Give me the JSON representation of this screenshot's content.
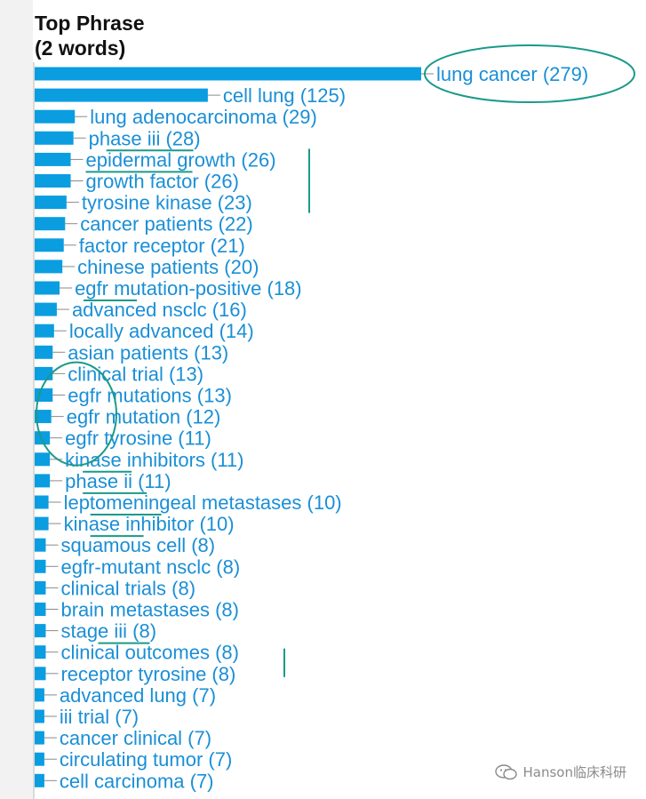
{
  "chart_data": {
    "type": "bar",
    "orientation": "horizontal",
    "title_line1": "Top Phrase",
    "title_line2": "(2 words)",
    "categories": [
      "lung cancer",
      "cell lung",
      "lung adenocarcinoma",
      "phase iii",
      "epidermal growth",
      "growth factor",
      "tyrosine kinase",
      "cancer patients",
      "factor receptor",
      "chinese patients",
      "egfr mutation-positive",
      "advanced nsclc",
      "locally advanced",
      "asian patients",
      "clinical trial",
      "egfr mutations",
      "egfr mutation",
      "egfr tyrosine",
      "kinase inhibitors",
      "phase ii",
      "leptomeningeal metastases",
      "kinase inhibitor",
      "squamous cell",
      "egfr-mutant nsclc",
      "clinical trials",
      "brain metastases",
      "stage iii",
      "clinical outcomes",
      "receptor tyrosine",
      "advanced lung",
      "iii trial",
      "cancer clinical",
      "circulating tumor",
      "cell carcinoma"
    ],
    "values": [
      279,
      125,
      29,
      28,
      26,
      26,
      23,
      22,
      21,
      20,
      18,
      16,
      14,
      13,
      13,
      13,
      12,
      11,
      11,
      11,
      10,
      10,
      8,
      8,
      8,
      8,
      8,
      8,
      8,
      7,
      7,
      7,
      7,
      7
    ],
    "xlim": [
      0,
      279
    ],
    "grid": false,
    "legend": "none"
  },
  "colors": {
    "bar": "#0a9de0",
    "label": "#1a8fd6",
    "connector": "#8a8a8a",
    "annotation": "#1a9a8a",
    "title": "#111111"
  },
  "watermark": {
    "text": "Hanson临床科研",
    "icon": "wechat-icon"
  }
}
